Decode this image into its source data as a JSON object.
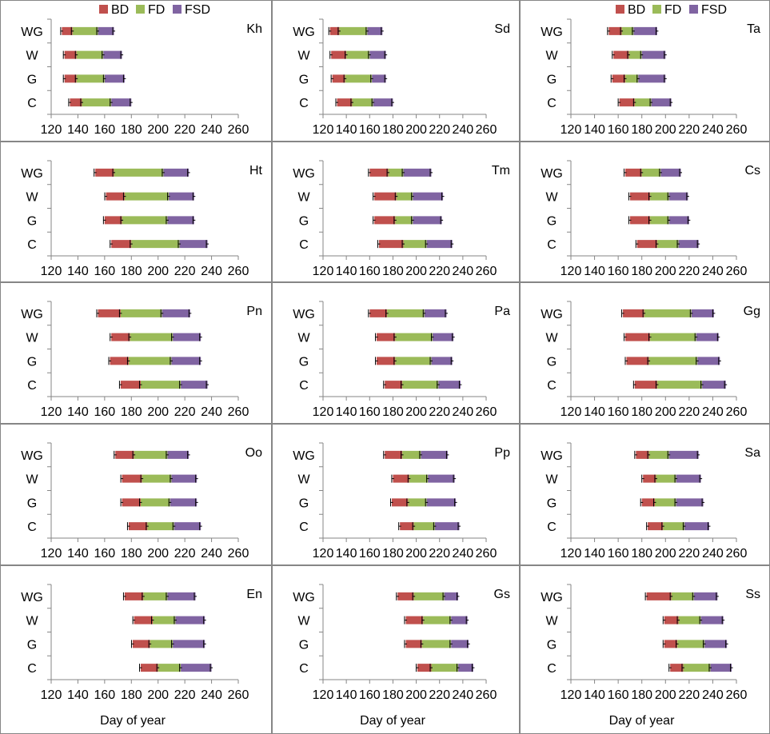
{
  "figure": {
    "colors": {
      "BD": "#c0504d",
      "FD": "#9bbb59",
      "FSD": "#8064a2",
      "axis": "#868686",
      "text": "#000000",
      "border": "#868686"
    },
    "legend_items": [
      "BD",
      "FD",
      "FSD"
    ],
    "xlabel": "Day of year",
    "category_labels": [
      "WG",
      "W",
      "G",
      "C"
    ],
    "x_ticks": [
      120,
      140,
      160,
      180,
      200,
      220,
      240,
      260
    ]
  },
  "chart_data": [
    {
      "type": "bar",
      "stacked": true,
      "orientation": "horizontal",
      "title": "Kh",
      "xlim": [
        120,
        260
      ],
      "categories": [
        "WG",
        "W",
        "G",
        "C"
      ],
      "series": [
        {
          "name": "BD",
          "start": [
            128,
            130,
            130,
            134
          ],
          "end": [
            136,
            139,
            139,
            143
          ]
        },
        {
          "name": "FD",
          "end": [
            155,
            159,
            160,
            165
          ]
        },
        {
          "name": "FSD",
          "end": [
            167,
            173,
            175,
            180
          ]
        }
      ],
      "legend": "top"
    },
    {
      "type": "bar",
      "stacked": true,
      "orientation": "horizontal",
      "title": "Sd",
      "xlim": [
        120,
        260
      ],
      "categories": [
        "WG",
        "W",
        "G",
        "C"
      ],
      "series": [
        {
          "name": "BD",
          "start": [
            126,
            127,
            128,
            132
          ],
          "end": [
            134,
            140,
            139,
            145
          ]
        },
        {
          "name": "FD",
          "end": [
            158,
            160,
            162,
            163
          ]
        },
        {
          "name": "FSD",
          "end": [
            171,
            174,
            174,
            180
          ]
        }
      ],
      "legend": "top"
    },
    {
      "type": "bar",
      "stacked": true,
      "orientation": "horizontal",
      "title": "Ta",
      "xlim": [
        120,
        260
      ],
      "categories": [
        "WG",
        "W",
        "G",
        "C"
      ],
      "series": [
        {
          "name": "BD",
          "start": [
            152,
            156,
            155,
            161
          ],
          "end": [
            163,
            169,
            166,
            174
          ]
        },
        {
          "name": "FD",
          "end": [
            173,
            180,
            177,
            188
          ]
        },
        {
          "name": "FSD",
          "end": [
            193,
            200,
            200,
            205
          ]
        }
      ],
      "legend": "top"
    },
    {
      "type": "bar",
      "stacked": true,
      "orientation": "horizontal",
      "title": "Ht",
      "xlim": [
        120,
        260
      ],
      "categories": [
        "WG",
        "W",
        "G",
        "C"
      ],
      "series": [
        {
          "name": "BD",
          "start": [
            153,
            161,
            160,
            165
          ],
          "end": [
            167,
            175,
            173,
            180
          ]
        },
        {
          "name": "FD",
          "end": [
            204,
            208,
            207,
            216
          ]
        },
        {
          "name": "FSD",
          "end": [
            223,
            227,
            227,
            237
          ]
        }
      ]
    },
    {
      "type": "bar",
      "stacked": true,
      "orientation": "horizontal",
      "title": "Tm",
      "xlim": [
        120,
        260
      ],
      "categories": [
        "WG",
        "W",
        "G",
        "C"
      ],
      "series": [
        {
          "name": "BD",
          "start": [
            160,
            164,
            164,
            168
          ],
          "end": [
            176,
            183,
            182,
            189
          ]
        },
        {
          "name": "FD",
          "end": [
            189,
            197,
            197,
            209
          ]
        },
        {
          "name": "FSD",
          "end": [
            213,
            223,
            222,
            231
          ]
        }
      ]
    },
    {
      "type": "bar",
      "stacked": true,
      "orientation": "horizontal",
      "title": "Cs",
      "xlim": [
        120,
        260
      ],
      "categories": [
        "WG",
        "W",
        "G",
        "C"
      ],
      "series": [
        {
          "name": "BD",
          "start": [
            166,
            170,
            170,
            176
          ],
          "end": [
            180,
            187,
            187,
            193
          ]
        },
        {
          "name": "FD",
          "end": [
            196,
            203,
            203,
            211
          ]
        },
        {
          "name": "FSD",
          "end": [
            213,
            219,
            220,
            228
          ]
        }
      ]
    },
    {
      "type": "bar",
      "stacked": true,
      "orientation": "horizontal",
      "title": "Pn",
      "xlim": [
        120,
        260
      ],
      "categories": [
        "WG",
        "W",
        "G",
        "C"
      ],
      "series": [
        {
          "name": "BD",
          "start": [
            155,
            165,
            164,
            172
          ],
          "end": [
            172,
            179,
            178,
            187
          ]
        },
        {
          "name": "FD",
          "end": [
            203,
            211,
            210,
            217
          ]
        },
        {
          "name": "FSD",
          "end": [
            224,
            232,
            232,
            237
          ]
        }
      ]
    },
    {
      "type": "bar",
      "stacked": true,
      "orientation": "horizontal",
      "title": "Pa",
      "xlim": [
        120,
        260
      ],
      "categories": [
        "WG",
        "W",
        "G",
        "C"
      ],
      "series": [
        {
          "name": "BD",
          "start": [
            160,
            166,
            166,
            173
          ],
          "end": [
            175,
            182,
            182,
            188
          ]
        },
        {
          "name": "FD",
          "end": [
            207,
            214,
            213,
            219
          ]
        },
        {
          "name": "FSD",
          "end": [
            226,
            232,
            231,
            238
          ]
        }
      ]
    },
    {
      "type": "bar",
      "stacked": true,
      "orientation": "horizontal",
      "title": "Gg",
      "xlim": [
        120,
        260
      ],
      "categories": [
        "WG",
        "W",
        "G",
        "C"
      ],
      "series": [
        {
          "name": "BD",
          "start": [
            164,
            166,
            167,
            174
          ],
          "end": [
            182,
            187,
            186,
            193
          ]
        },
        {
          "name": "FD",
          "end": [
            222,
            226,
            227,
            231
          ]
        },
        {
          "name": "FSD",
          "end": [
            241,
            245,
            246,
            251
          ]
        }
      ]
    },
    {
      "type": "bar",
      "stacked": true,
      "orientation": "horizontal",
      "title": "Oo",
      "xlim": [
        120,
        260
      ],
      "categories": [
        "WG",
        "W",
        "G",
        "C"
      ],
      "series": [
        {
          "name": "BD",
          "start": [
            168,
            173,
            173,
            178
          ],
          "end": [
            182,
            188,
            187,
            192
          ]
        },
        {
          "name": "FD",
          "end": [
            207,
            210,
            209,
            212
          ]
        },
        {
          "name": "FSD",
          "end": [
            223,
            229,
            229,
            232
          ]
        }
      ]
    },
    {
      "type": "bar",
      "stacked": true,
      "orientation": "horizontal",
      "title": "Pp",
      "xlim": [
        120,
        260
      ],
      "categories": [
        "WG",
        "W",
        "G",
        "C"
      ],
      "series": [
        {
          "name": "BD",
          "start": [
            173,
            180,
            179,
            186
          ],
          "end": [
            188,
            194,
            193,
            198
          ]
        },
        {
          "name": "FD",
          "end": [
            204,
            210,
            209,
            216
          ]
        },
        {
          "name": "FSD",
          "end": [
            227,
            233,
            234,
            237
          ]
        }
      ]
    },
    {
      "type": "bar",
      "stacked": true,
      "orientation": "horizontal",
      "title": "Sa",
      "xlim": [
        120,
        260
      ],
      "categories": [
        "WG",
        "W",
        "G",
        "C"
      ],
      "series": [
        {
          "name": "BD",
          "start": [
            175,
            181,
            180,
            185
          ],
          "end": [
            186,
            192,
            191,
            198
          ]
        },
        {
          "name": "FD",
          "end": [
            203,
            209,
            209,
            216
          ]
        },
        {
          "name": "FSD",
          "end": [
            228,
            230,
            232,
            237
          ]
        }
      ]
    },
    {
      "type": "bar",
      "stacked": true,
      "orientation": "horizontal",
      "title": "En",
      "xlim": [
        120,
        260
      ],
      "categories": [
        "WG",
        "W",
        "G",
        "C"
      ],
      "series": [
        {
          "name": "BD",
          "start": [
            175,
            182,
            181,
            187
          ],
          "end": [
            189,
            196,
            194,
            200
          ]
        },
        {
          "name": "FD",
          "end": [
            207,
            213,
            211,
            217
          ]
        },
        {
          "name": "FSD",
          "end": [
            228,
            235,
            235,
            240
          ]
        }
      ]
    },
    {
      "type": "bar",
      "stacked": true,
      "orientation": "horizontal",
      "title": "Gs",
      "xlim": [
        120,
        260
      ],
      "categories": [
        "WG",
        "W",
        "G",
        "C"
      ],
      "series": [
        {
          "name": "BD",
          "start": [
            184,
            191,
            191,
            201
          ],
          "end": [
            198,
            206,
            205,
            213
          ]
        },
        {
          "name": "FD",
          "end": [
            224,
            230,
            230,
            236
          ]
        },
        {
          "name": "FSD",
          "end": [
            236,
            244,
            245,
            249
          ]
        }
      ]
    },
    {
      "type": "bar",
      "stacked": true,
      "orientation": "horizontal",
      "title": "Ss",
      "xlim": [
        120,
        260
      ],
      "categories": [
        "WG",
        "W",
        "G",
        "C"
      ],
      "series": [
        {
          "name": "BD",
          "start": [
            184,
            199,
            199,
            204
          ],
          "end": [
            205,
            211,
            210,
            215
          ]
        },
        {
          "name": "FD",
          "end": [
            224,
            230,
            233,
            238
          ]
        },
        {
          "name": "FSD",
          "end": [
            244,
            249,
            252,
            256
          ]
        }
      ]
    }
  ]
}
